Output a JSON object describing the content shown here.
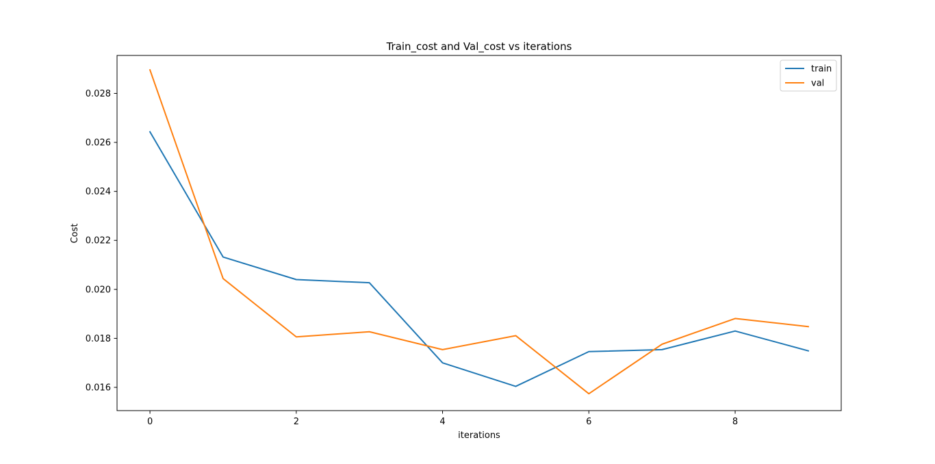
{
  "chart_data": {
    "type": "line",
    "title": "Train_cost and Val_cost vs iterations",
    "xlabel": "iterations",
    "ylabel": "Cost",
    "xlim": [
      -0.45,
      9.45
    ],
    "ylim": [
      0.01505,
      0.02955
    ],
    "xticks": [
      0,
      2,
      4,
      6,
      8
    ],
    "xtick_labels": [
      "0",
      "2",
      "4",
      "6",
      "8"
    ],
    "yticks": [
      0.016,
      0.018,
      0.02,
      0.022,
      0.024,
      0.026,
      0.028
    ],
    "ytick_labels": [
      "0.016",
      "0.018",
      "0.020",
      "0.022",
      "0.024",
      "0.026",
      "0.028"
    ],
    "x": [
      0,
      1,
      2,
      3,
      4,
      5,
      6,
      7,
      8,
      9
    ],
    "series": [
      {
        "name": "train",
        "color": "#1f77b4",
        "values": [
          0.02643,
          0.02132,
          0.0204,
          0.02027,
          0.017,
          0.01604,
          0.01746,
          0.01754,
          0.0183,
          0.01749
        ]
      },
      {
        "name": "val",
        "color": "#ff7f0e",
        "values": [
          0.02896,
          0.02044,
          0.01806,
          0.01827,
          0.01754,
          0.01811,
          0.01574,
          0.01776,
          0.01881,
          0.01848
        ]
      }
    ],
    "grid": false,
    "legend_position": "top-right"
  }
}
